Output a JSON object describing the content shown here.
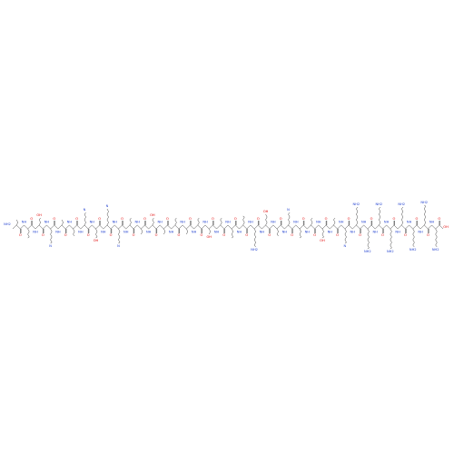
{
  "molecule": {
    "atom_labels": {
      "oxygen": "O",
      "amide": "NH",
      "amine": "NH2",
      "hydroxyl": "OH",
      "nitrogen": "N"
    }
  }
}
